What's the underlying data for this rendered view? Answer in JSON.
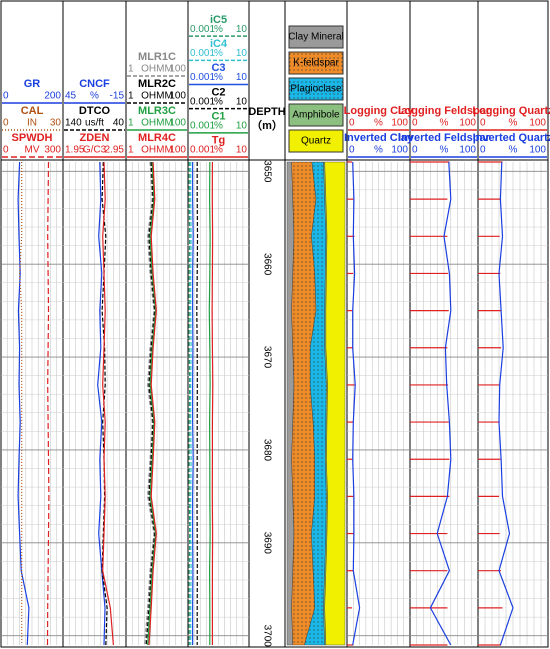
{
  "depth": {
    "label": "DEPTH",
    "unit": "（m）",
    "lim": [
      3649,
      3701
    ],
    "ticks": [
      3650,
      3660,
      3670,
      3680,
      3690,
      3700
    ],
    "samples": [
      3649,
      3653,
      3657,
      3661,
      3665,
      3669,
      3673,
      3677,
      3681,
      3685,
      3689,
      3693,
      3697,
      3701
    ]
  },
  "tracks": [
    {
      "curves": [
        {
          "name": "GR",
          "color": "#1a3fe0",
          "lim": [
            0,
            200
          ],
          "dash": "",
          "values": [
            60,
            55,
            58,
            62,
            56,
            60,
            58,
            62,
            58,
            55,
            60,
            65,
            90,
            85
          ]
        },
        {
          "name": "CAL",
          "unit": "IN",
          "color": "#b05010",
          "lim": [
            0,
            30
          ],
          "dash": "1 2",
          "values": [
            10,
            10,
            10,
            9,
            10,
            10,
            10,
            10,
            10,
            10,
            10,
            10,
            10,
            10
          ]
        },
        {
          "name": "SPWDH",
          "unit": "MV",
          "color": "#e02020",
          "lim": [
            0,
            300
          ],
          "dash": "6 3",
          "values": [
            230,
            228,
            226,
            228,
            230,
            228,
            226,
            228,
            230,
            232,
            230,
            228,
            226,
            225
          ]
        }
      ]
    },
    {
      "curves": [
        {
          "name": "CNCF",
          "unit": "%",
          "color": "#1a3fe0",
          "lim": [
            45,
            -15
          ],
          "dash": "",
          "values": [
            10,
            9,
            11,
            8,
            10,
            9,
            12,
            8,
            10,
            9,
            11,
            8,
            5,
            6
          ]
        },
        {
          "name": "DTCO",
          "unit": "us/ft",
          "color": "#000000",
          "lim": [
            140,
            40
          ],
          "dash": "4 2",
          "values": [
            76,
            78,
            72,
            75,
            78,
            74,
            73,
            77,
            75,
            74,
            76,
            78,
            70,
            72
          ]
        },
        {
          "name": "ZDEN",
          "unit": "G/C3",
          "color": "#e02020",
          "lim": [
            1.95,
            2.95
          ],
          "dash": "",
          "values": [
            2.6,
            2.62,
            2.58,
            2.6,
            2.62,
            2.6,
            2.58,
            2.62,
            2.6,
            2.62,
            2.6,
            2.58,
            2.7,
            2.75
          ]
        }
      ]
    },
    {
      "curves": [
        {
          "name": "MLR1C",
          "unit": "OHMM",
          "color": "#888888",
          "lim": [
            1,
            100
          ],
          "log": true,
          "dash": "4 2",
          "values": [
            6,
            7,
            5,
            6,
            8,
            6,
            5,
            7,
            6,
            5,
            8,
            6,
            5,
            4
          ]
        },
        {
          "name": "MLR2C",
          "unit": "OHMM",
          "color": "#000000",
          "lim": [
            1,
            100
          ],
          "log": true,
          "dash": "4 2",
          "values": [
            6.5,
            7.5,
            5.5,
            6.5,
            8.5,
            6.5,
            5.5,
            7.5,
            6.5,
            5.5,
            8.5,
            6.5,
            5.5,
            4.5
          ]
        },
        {
          "name": "MLR3C",
          "unit": "OHMM",
          "color": "#20a040",
          "lim": [
            1,
            100
          ],
          "log": true,
          "dash": "",
          "values": [
            7,
            8,
            6,
            7,
            9,
            7,
            6,
            8,
            7,
            6,
            9,
            7,
            6,
            5
          ]
        },
        {
          "name": "MLR4C",
          "unit": "OHMM",
          "color": "#e02020",
          "lim": [
            1,
            100
          ],
          "log": true,
          "dash": "",
          "values": [
            7.5,
            8.5,
            6.5,
            7.5,
            9.5,
            7.5,
            6.5,
            8.5,
            7.5,
            6.5,
            9.5,
            7.5,
            6.5,
            5.5
          ]
        }
      ]
    },
    {
      "curves": [
        {
          "name": "iC5",
          "unit": "%",
          "color": "#2a9a6a",
          "lim": [
            0.001,
            10
          ],
          "log": true,
          "dash": "4 2",
          "values": [
            0.0012,
            0.0012,
            0.0013,
            0.0012,
            0.0012,
            0.0012,
            0.0013,
            0.0012,
            0.0012,
            0.0012,
            0.0013,
            0.0012,
            0.0012,
            0.0012
          ]
        },
        {
          "name": "iC4",
          "unit": "%",
          "color": "#30c0d0",
          "lim": [
            0.001,
            10
          ],
          "log": true,
          "dash": "4 2",
          "values": [
            0.0015,
            0.0015,
            0.0016,
            0.0015,
            0.0015,
            0.0016,
            0.0015,
            0.0015,
            0.0016,
            0.0015,
            0.0015,
            0.0016,
            0.0015,
            0.0015
          ]
        },
        {
          "name": "C3",
          "unit": "%",
          "color": "#2050e0",
          "lim": [
            0.001,
            10
          ],
          "log": true,
          "dash": "",
          "values": [
            0.002,
            0.002,
            0.0022,
            0.002,
            0.002,
            0.0021,
            0.002,
            0.002,
            0.0022,
            0.002,
            0.002,
            0.0021,
            0.002,
            0.002
          ]
        },
        {
          "name": "C2",
          "unit": "%",
          "color": "#000000",
          "lim": [
            0.001,
            10
          ],
          "log": true,
          "dash": "4 2",
          "values": [
            0.004,
            0.004,
            0.0042,
            0.004,
            0.0038,
            0.004,
            0.0041,
            0.004,
            0.004,
            0.0039,
            0.004,
            0.0041,
            0.004,
            0.004
          ]
        },
        {
          "name": "C1",
          "unit": "%",
          "color": "#20a040",
          "lim": [
            0.001,
            10
          ],
          "log": true,
          "dash": "",
          "values": [
            0.027,
            0.026,
            0.028,
            0.027,
            0.025,
            0.027,
            0.028,
            0.026,
            0.027,
            0.027,
            0.028,
            0.026,
            0.027,
            0.027
          ]
        },
        {
          "name": "Tg",
          "unit": "%",
          "color": "#e02020",
          "lim": [
            0.001,
            10
          ],
          "log": true,
          "dash": "",
          "values": [
            0.04,
            0.039,
            0.041,
            0.04,
            0.038,
            0.04,
            0.042,
            0.04,
            0.04,
            0.039,
            0.041,
            0.04,
            0.04,
            0.04
          ]
        }
      ]
    },
    {
      "curves": [
        {
          "name": "Logging Clay",
          "unit": "%",
          "color": "#e02020",
          "lim": [
            0,
            100
          ],
          "ticks": true,
          "values": [
            8,
            10,
            12,
            10,
            8,
            10,
            12,
            10,
            8,
            10,
            12,
            10,
            8,
            10
          ]
        },
        {
          "name": "Inverted Clay",
          "unit": "%",
          "color": "#1a3fe0",
          "lim": [
            0,
            100
          ],
          "dash": "",
          "values": [
            9,
            11,
            10,
            12,
            9,
            9,
            13,
            10,
            9,
            11,
            11,
            10,
            20,
            9
          ]
        }
      ]
    },
    {
      "curves": [
        {
          "name": "Logging Feldspar",
          "unit": "%",
          "color": "#e02020",
          "lim": [
            0,
            100
          ],
          "ticks": true,
          "values": [
            58,
            55,
            55,
            56,
            57,
            55,
            56,
            57,
            58,
            58,
            55,
            55,
            55,
            55
          ]
        },
        {
          "name": "Inverted Feldspar",
          "unit": "%",
          "color": "#1a3fe0",
          "lim": [
            0,
            100
          ],
          "dash": "",
          "values": [
            57,
            60,
            50,
            58,
            60,
            52,
            54,
            58,
            60,
            55,
            40,
            58,
            30,
            60
          ]
        }
      ]
    },
    {
      "curves": [
        {
          "name": "Logging Quartz",
          "unit": "%",
          "color": "#e02020",
          "lim": [
            0,
            100
          ],
          "ticks": true,
          "values": [
            35,
            33,
            31,
            32,
            33,
            33,
            30,
            31,
            32,
            30,
            31,
            33,
            35,
            33
          ]
        },
        {
          "name": "Inverted Quartz",
          "unit": "%",
          "color": "#1a3fe0",
          "lim": [
            0,
            100
          ],
          "dash": "",
          "values": [
            34,
            32,
            35,
            30,
            33,
            36,
            31,
            30,
            33,
            35,
            45,
            30,
            50,
            32
          ]
        }
      ]
    }
  ],
  "lithology": {
    "minerals": [
      {
        "name": "Clay Mineral",
        "color": "#9a9a9a",
        "values": [
          8,
          10,
          12,
          10,
          8,
          10,
          12,
          10,
          8,
          10,
          12,
          10,
          8,
          10
        ]
      },
      {
        "name": "K-feldspar",
        "color": "#f08c28",
        "pattern": true,
        "values": [
          35,
          40,
          30,
          38,
          42,
          30,
          28,
          35,
          40,
          38,
          30,
          35,
          40,
          20
        ]
      },
      {
        "name": "Plagioclase",
        "color": "#1ab8e8",
        "pattern": true,
        "values": [
          20,
          15,
          25,
          18,
          15,
          25,
          28,
          22,
          18,
          20,
          25,
          20,
          15,
          35
        ]
      },
      {
        "name": "Amphibole",
        "color": "#8cc080",
        "values": [
          2,
          2,
          2,
          2,
          2,
          2,
          2,
          2,
          2,
          2,
          2,
          2,
          2,
          2
        ]
      },
      {
        "name": "Quartz",
        "color": "#f0f000",
        "values": [
          35,
          33,
          31,
          32,
          33,
          33,
          30,
          31,
          32,
          30,
          31,
          33,
          35,
          33
        ]
      }
    ]
  }
}
